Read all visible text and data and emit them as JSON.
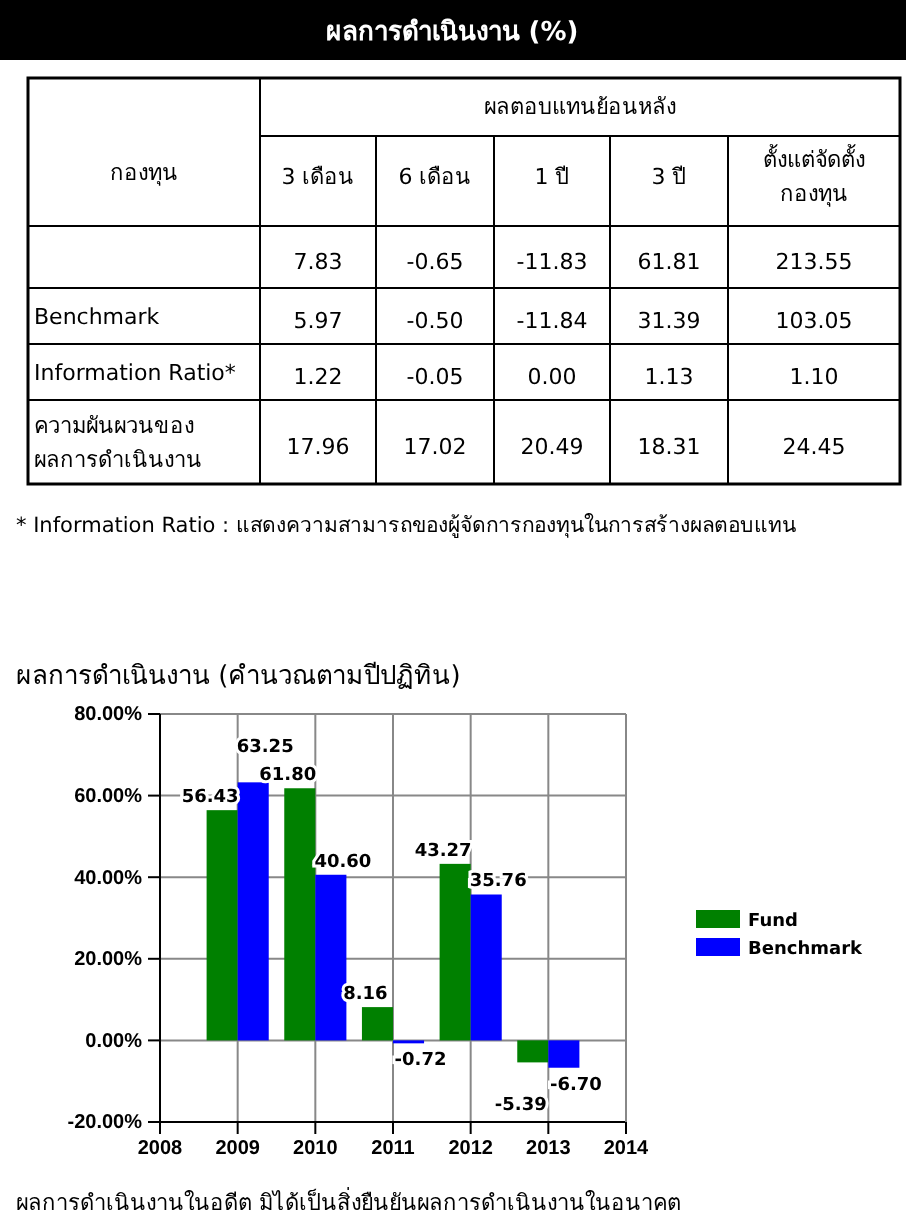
{
  "chart_data": [
    {
      "type": "heatmap",
      "title": "ผลการดำเนินงาน (%)",
      "categories": [
        "3 เดือน",
        "6 เดือน",
        "1 ปี",
        "3 ปี",
        "ตั้งแต่จัดตั้ง\nกองทุน"
      ],
      "y_categories": [
        null,
        "Benchmark",
        "Information Ratio*",
        "ความผันผวนของ\nผลการดำเนินงาน"
      ],
      "cells": [
        [
          7.83,
          -0.65,
          -11.83,
          61.81,
          213.55
        ],
        [
          5.97,
          -0.5,
          -11.84,
          31.39,
          103.05
        ],
        [
          1.22,
          -0.05,
          0,
          1.13,
          1.1
        ],
        [
          17.96,
          17.02,
          20.49,
          18.31,
          24.45
        ]
      ],
      "cell_labels": [
        [
          "7.83",
          "-0.65",
          "-11.83",
          "61.81",
          "213.55"
        ],
        [
          "5.97",
          "-0.50",
          "-11.84",
          "31.39",
          "103.05"
        ],
        [
          "1.22",
          "-0.05",
          "0.00",
          "1.13",
          "1.10"
        ],
        [
          "17.96",
          "17.02",
          "20.49",
          "18.31",
          "24.45"
        ]
      ],
      "annotations": [
        "ผลตอบแทนย้อนหลัง",
        "กองทุน",
        "* Information Ratio : แสดงความสามารถของผู้จัดการกองทุนในการสร้างผลตอบแทน"
      ]
    },
    {
      "type": "bar",
      "title": "ผลการดำเนินงาน (คำนวณตามปีปฏิทิน)",
      "x": [
        2009,
        2010,
        2011,
        2012,
        2013
      ],
      "series": [
        {
          "name": "Fund",
          "color": "#008000",
          "values": [
            56.43,
            61.8,
            8.16,
            43.27,
            -5.39
          ],
          "value_labels": [
            "56.43",
            "61.80",
            "8.16",
            "43.27",
            "-5.39"
          ]
        },
        {
          "name": "Benchmark",
          "color": "#0000ff",
          "values": [
            63.25,
            40.6,
            -0.72,
            35.76,
            -6.7
          ],
          "value_labels": [
            "63.25",
            "40.60",
            "-0.72",
            "35.76",
            "-6.70"
          ]
        }
      ],
      "xlim": [
        2008,
        2014
      ],
      "xticks": [
        2008,
        2009,
        2010,
        2011,
        2012,
        2013,
        2014
      ],
      "ylim": [
        -20,
        80
      ],
      "yticks": [
        {
          "value": -20,
          "label": "-20.00%"
        },
        {
          "value": 0,
          "label": "0.00%"
        },
        {
          "value": 20,
          "label": "20.00%"
        },
        {
          "value": 40,
          "label": "40.00%"
        },
        {
          "value": 60,
          "label": "60.00%"
        },
        {
          "value": 80,
          "label": "80.00%"
        }
      ],
      "grid": true,
      "legend": "right",
      "annotations": [
        "ผลการดำเนินงานในอดีต มิได้เป็นสิ่งยืนยันผลการดำเนินงานในอนาคต"
      ]
    }
  ]
}
